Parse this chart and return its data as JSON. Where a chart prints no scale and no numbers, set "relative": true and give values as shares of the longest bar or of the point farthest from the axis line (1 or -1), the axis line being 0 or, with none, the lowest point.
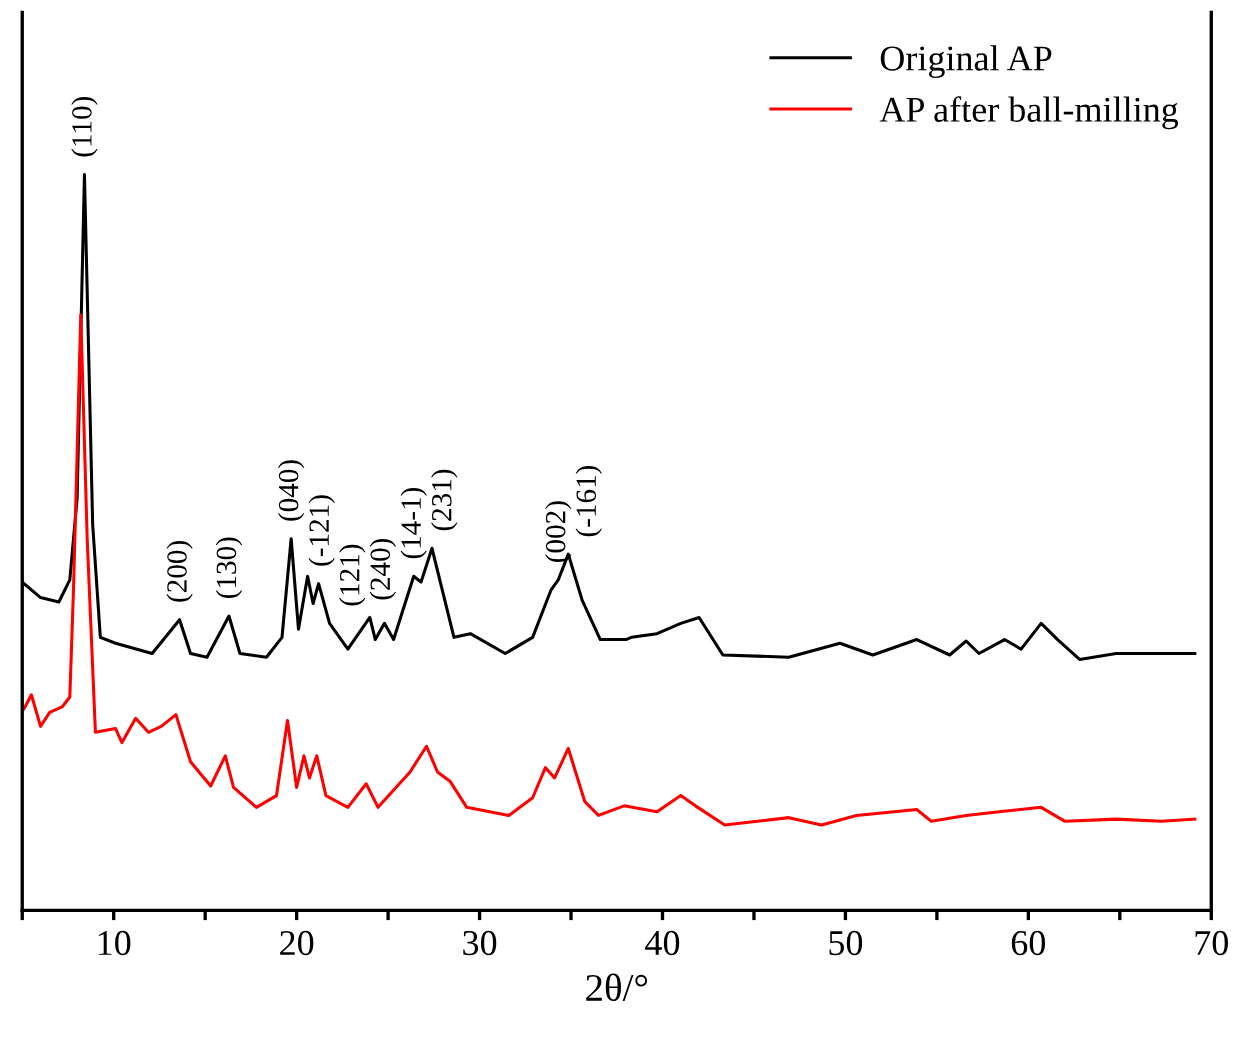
{
  "chart_data": {
    "type": "line",
    "relative": true,
    "xlabel": "2θ/°",
    "xlim": [
      5,
      70
    ],
    "xticks": [
      {
        "value": 5,
        "label": null
      },
      10,
      {
        "value": 15,
        "label": null
      },
      20,
      {
        "value": 25,
        "label": null
      },
      30,
      {
        "value": 35,
        "label": null
      },
      40,
      {
        "value": 45,
        "label": null
      },
      50,
      {
        "value": 55,
        "label": null
      },
      60,
      {
        "value": 65,
        "label": null
      },
      70
    ],
    "legend": "top right",
    "grid": false,
    "series": [
      {
        "name": "Original AP",
        "color": "#000000",
        "x": [
          5,
          6.0,
          7.0,
          7.6,
          8.0,
          8.4,
          8.85,
          9.27,
          10.1,
          12.1,
          13.6,
          14.2,
          15.1,
          16.3,
          16.9,
          18.35,
          19.2,
          19.7,
          20.1,
          20.6,
          20.9,
          21.2,
          21.8,
          22.8,
          24.0,
          24.3,
          24.8,
          25.3,
          26.4,
          26.8,
          27.4,
          28.6,
          29.5,
          31.4,
          32.9,
          33.9,
          34.3,
          34.85,
          35.6,
          36.6,
          38.0,
          38.3,
          39.7,
          41.0,
          42.0,
          43.3,
          46.9,
          49.7,
          51.5,
          53.9,
          55.7,
          56.6,
          57.3,
          58.7,
          59.6,
          60.7,
          61.6,
          62.8,
          64.8,
          66.6,
          69.1
        ],
        "values": [
          0.446,
          0.425,
          0.419,
          0.449,
          0.56,
          1.0,
          0.524,
          0.371,
          0.363,
          0.349,
          0.395,
          0.349,
          0.344,
          0.4,
          0.349,
          0.344,
          0.371,
          0.505,
          0.382,
          0.454,
          0.417,
          0.444,
          0.39,
          0.355,
          0.398,
          0.368,
          0.39,
          0.368,
          0.454,
          0.446,
          0.492,
          0.371,
          0.376,
          0.349,
          0.371,
          0.435,
          0.449,
          0.484,
          0.422,
          0.368,
          0.368,
          0.371,
          0.376,
          0.39,
          0.398,
          0.347,
          0.344,
          0.363,
          0.347,
          0.368,
          0.347,
          0.366,
          0.349,
          0.368,
          0.355,
          0.39,
          0.368,
          0.341,
          0.349,
          0.349,
          0.349
        ]
      },
      {
        "name": "AP after ball-milling",
        "color": "#ff0000",
        "x": [
          5.1,
          5.5,
          6.0,
          6.5,
          7.2,
          7.6,
          7.8,
          8.2,
          8.55,
          9.0,
          10.1,
          10.45,
          11.2,
          11.9,
          12.6,
          13.4,
          14.2,
          15.3,
          16.1,
          16.55,
          17.8,
          18.9,
          19.5,
          20.0,
          20.4,
          20.7,
          21.1,
          21.6,
          22.8,
          23.8,
          24.45,
          26.2,
          27.1,
          27.7,
          28.4,
          29.3,
          31.6,
          32.9,
          33.6,
          34.1,
          34.85,
          35.75,
          36.5,
          37.9,
          39.7,
          41.0,
          41.8,
          43.4,
          46.9,
          48.7,
          50.6,
          53.9,
          54.7,
          56.6,
          58.4,
          60.7,
          62.0,
          64.8,
          67.3,
          69.1
        ],
        "values": [
          0.274,
          0.293,
          0.25,
          0.269,
          0.277,
          0.29,
          0.435,
          0.809,
          0.505,
          0.242,
          0.247,
          0.228,
          0.261,
          0.242,
          0.25,
          0.266,
          0.202,
          0.169,
          0.21,
          0.167,
          0.14,
          0.156,
          0.258,
          0.167,
          0.21,
          0.18,
          0.21,
          0.156,
          0.14,
          0.172,
          0.14,
          0.188,
          0.223,
          0.188,
          0.175,
          0.14,
          0.129,
          0.153,
          0.194,
          0.18,
          0.22,
          0.148,
          0.129,
          0.142,
          0.134,
          0.156,
          0.142,
          0.116,
          0.126,
          0.116,
          0.129,
          0.137,
          0.121,
          0.129,
          0.134,
          0.14,
          0.121,
          0.124,
          0.121,
          0.124
        ]
      }
    ],
    "annotations": [
      {
        "text": "(110)",
        "x": 8.4,
        "y": 1.0
      },
      {
        "text": "(200)",
        "x": 13.6,
        "y": 0.395
      },
      {
        "text": "(130)",
        "x": 16.3,
        "y": 0.4
      },
      {
        "text": "(040)",
        "x": 19.7,
        "y": 0.505
      },
      {
        "text": "(-121)",
        "x": 21.2,
        "y": 0.444
      },
      {
        "text": "(121)",
        "x": 21.8,
        "y": 0.39
      },
      {
        "text": "(240)",
        "x": 24.0,
        "y": 0.398
      },
      {
        "text": "(14-1)",
        "x": 26.4,
        "y": 0.454
      },
      {
        "text": "(231)",
        "x": 27.4,
        "y": 0.492
      },
      {
        "text": "(002)",
        "x": 34.3,
        "y": 0.449
      },
      {
        "text": "(-161)",
        "x": 34.85,
        "y": 0.484
      }
    ]
  }
}
